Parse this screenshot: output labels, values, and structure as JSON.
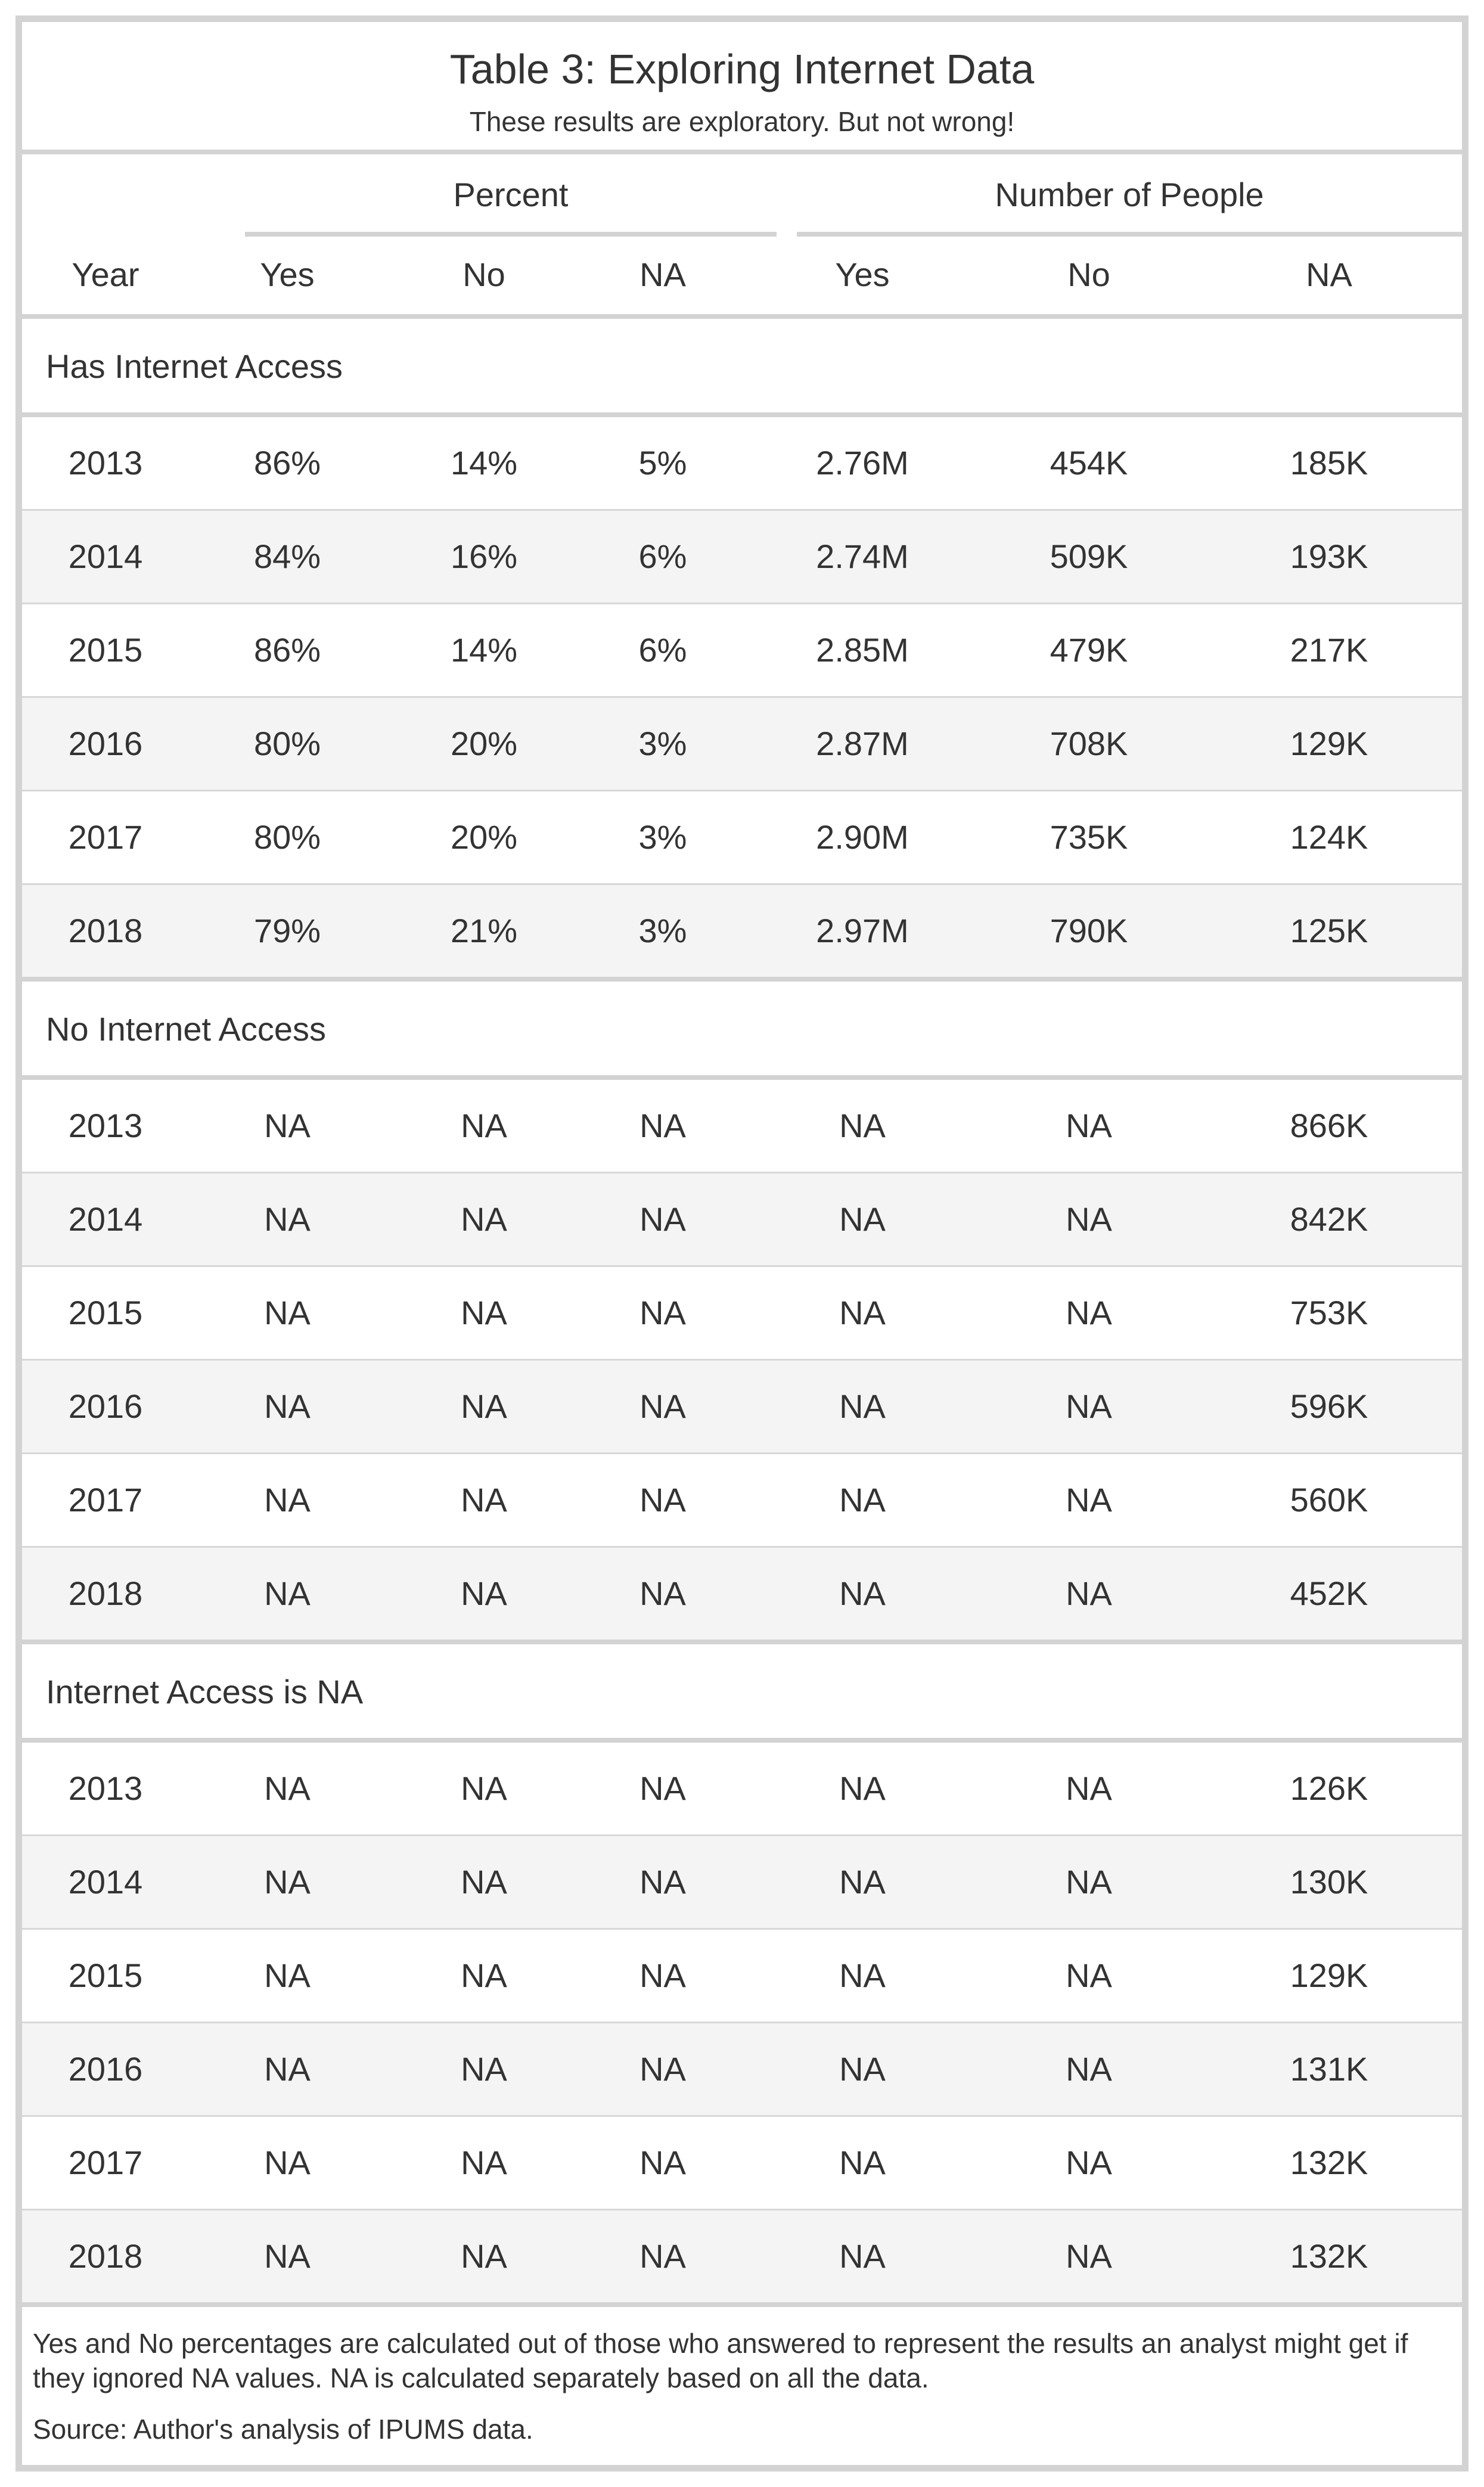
{
  "table": {
    "title": "Table 3: Exploring Internet Data",
    "subtitle": "These results are exploratory. But not wrong!",
    "spanners": {
      "percent": "Percent",
      "number": "Number of People"
    },
    "columns": [
      "Year",
      "Yes",
      "No",
      "NA",
      "Yes",
      "No",
      "NA"
    ],
    "groups": [
      {
        "label": "Has Internet Access",
        "rows": [
          [
            "2013",
            "86%",
            "14%",
            "5%",
            "2.76M",
            "454K",
            "185K"
          ],
          [
            "2014",
            "84%",
            "16%",
            "6%",
            "2.74M",
            "509K",
            "193K"
          ],
          [
            "2015",
            "86%",
            "14%",
            "6%",
            "2.85M",
            "479K",
            "217K"
          ],
          [
            "2016",
            "80%",
            "20%",
            "3%",
            "2.87M",
            "708K",
            "129K"
          ],
          [
            "2017",
            "80%",
            "20%",
            "3%",
            "2.90M",
            "735K",
            "124K"
          ],
          [
            "2018",
            "79%",
            "21%",
            "3%",
            "2.97M",
            "790K",
            "125K"
          ]
        ]
      },
      {
        "label": "No Internet Access",
        "rows": [
          [
            "2013",
            "NA",
            "NA",
            "NA",
            "NA",
            "NA",
            "866K"
          ],
          [
            "2014",
            "NA",
            "NA",
            "NA",
            "NA",
            "NA",
            "842K"
          ],
          [
            "2015",
            "NA",
            "NA",
            "NA",
            "NA",
            "NA",
            "753K"
          ],
          [
            "2016",
            "NA",
            "NA",
            "NA",
            "NA",
            "NA",
            "596K"
          ],
          [
            "2017",
            "NA",
            "NA",
            "NA",
            "NA",
            "NA",
            "560K"
          ],
          [
            "2018",
            "NA",
            "NA",
            "NA",
            "NA",
            "NA",
            "452K"
          ]
        ]
      },
      {
        "label": "Internet Access is NA",
        "rows": [
          [
            "2013",
            "NA",
            "NA",
            "NA",
            "NA",
            "NA",
            "126K"
          ],
          [
            "2014",
            "NA",
            "NA",
            "NA",
            "NA",
            "NA",
            "130K"
          ],
          [
            "2015",
            "NA",
            "NA",
            "NA",
            "NA",
            "NA",
            "129K"
          ],
          [
            "2016",
            "NA",
            "NA",
            "NA",
            "NA",
            "NA",
            "131K"
          ],
          [
            "2017",
            "NA",
            "NA",
            "NA",
            "NA",
            "NA",
            "132K"
          ],
          [
            "2018",
            "NA",
            "NA",
            "NA",
            "NA",
            "NA",
            "132K"
          ]
        ]
      }
    ],
    "footnote": "Yes and No percentages are calculated out of those who answered to represent the results an analyst might get if they ignored NA values. NA is calculated separately based on all the data.",
    "source": "Source: Author's analysis of IPUMS data.",
    "colors": {
      "border": "#d3d3d3",
      "stripe": "#f4f4f4",
      "text": "#333333"
    }
  }
}
